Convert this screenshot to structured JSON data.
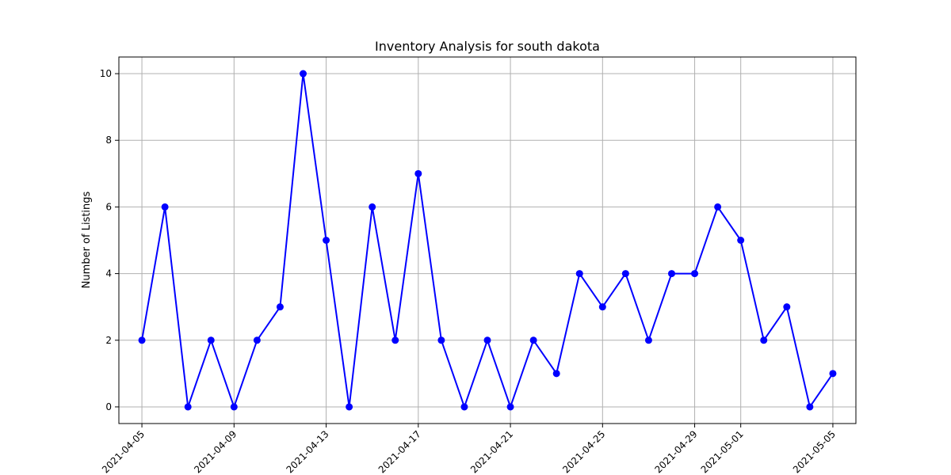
{
  "chart_data": {
    "type": "line",
    "title": "Inventory Analysis for south dakota",
    "xlabel": "",
    "ylabel": "Number of Listings",
    "grid": true,
    "x": [
      "2021-04-05",
      "2021-04-06",
      "2021-04-07",
      "2021-04-08",
      "2021-04-09",
      "2021-04-10",
      "2021-04-11",
      "2021-04-12",
      "2021-04-13",
      "2021-04-14",
      "2021-04-15",
      "2021-04-16",
      "2021-04-17",
      "2021-04-18",
      "2021-04-19",
      "2021-04-20",
      "2021-04-21",
      "2021-04-22",
      "2021-04-23",
      "2021-04-24",
      "2021-04-25",
      "2021-04-26",
      "2021-04-27",
      "2021-04-28",
      "2021-04-29",
      "2021-04-30",
      "2021-05-01",
      "2021-05-02",
      "2021-05-03",
      "2021-05-04",
      "2021-05-05"
    ],
    "series": [
      {
        "values": [
          2,
          6,
          0,
          2,
          0,
          2,
          3,
          10,
          5,
          0,
          6,
          2,
          7,
          2,
          0,
          2,
          0,
          2,
          1,
          4,
          3,
          4,
          2,
          4,
          4,
          6,
          5,
          2,
          3,
          0,
          1
        ],
        "color": "#0000ff",
        "marker": "circle"
      }
    ],
    "xticks": [
      "2021-04-05",
      "2021-04-09",
      "2021-04-13",
      "2021-04-17",
      "2021-04-21",
      "2021-04-25",
      "2021-04-29",
      "2021-05-01",
      "2021-05-05"
    ],
    "yticks": [
      0,
      2,
      4,
      6,
      8,
      10
    ],
    "xlim": [
      "2021-04-04",
      "2021-05-06"
    ],
    "ylim": [
      -0.5,
      10.5
    ],
    "gridColor": "#b0b0b0"
  }
}
